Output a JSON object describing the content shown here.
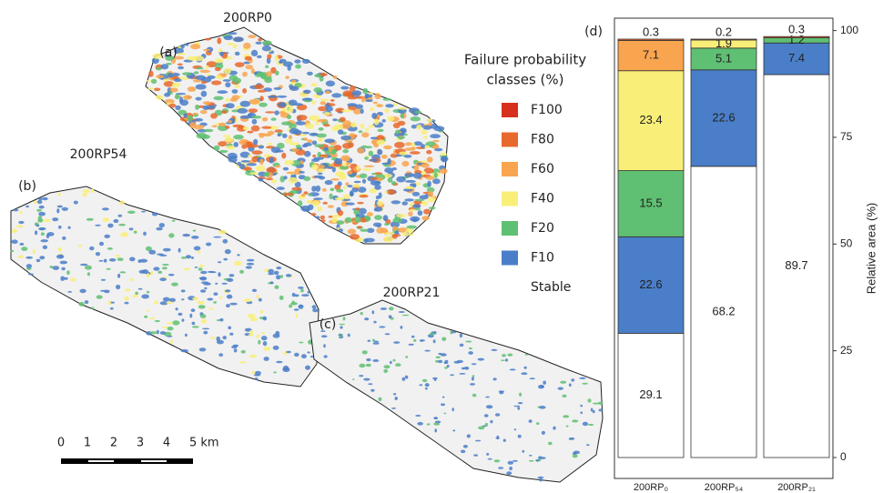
{
  "figure": {
    "maps": [
      {
        "title": "200RP0",
        "tag": "(a)"
      },
      {
        "title": "200RP54",
        "tag": "(b)"
      },
      {
        "title": "200RP21",
        "tag": "(c)"
      }
    ],
    "scale_bar": {
      "labels": [
        "0",
        "1",
        "2",
        "3",
        "4",
        "5 km"
      ]
    }
  },
  "chart_data": {
    "type": "bar",
    "stacked": true,
    "tag": "(d)",
    "categories": [
      "200RP₀",
      "200RP₅₄",
      "200RP₂₁"
    ],
    "legend_title": [
      "Failure probability",
      "classes (%)"
    ],
    "series": [
      {
        "name": "F100",
        "color": "#d7301f",
        "values": [
          0,
          0,
          0
        ]
      },
      {
        "name": "F80",
        "color": "#e8692d",
        "values": [
          0.3,
          0.2,
          0.3
        ]
      },
      {
        "name": "F60",
        "color": "#f9a54f",
        "values": [
          7.1,
          0,
          0
        ]
      },
      {
        "name": "F40",
        "color": "#f9ee78",
        "values": [
          23.4,
          1.9,
          0
        ]
      },
      {
        "name": "F20",
        "color": "#5fbf72",
        "values": [
          15.5,
          5.1,
          1.2
        ]
      },
      {
        "name": "F10",
        "color": "#4a7ec8",
        "values": [
          22.6,
          22.6,
          7.4
        ]
      },
      {
        "name": "Stable",
        "color": "#ffffff",
        "values": [
          29.1,
          68.2,
          89.7
        ]
      }
    ],
    "ylim": [
      -4.9,
      102.9
    ],
    "yticks": [
      0,
      25,
      50,
      75,
      100
    ],
    "y_label": "Relative area (%)"
  }
}
